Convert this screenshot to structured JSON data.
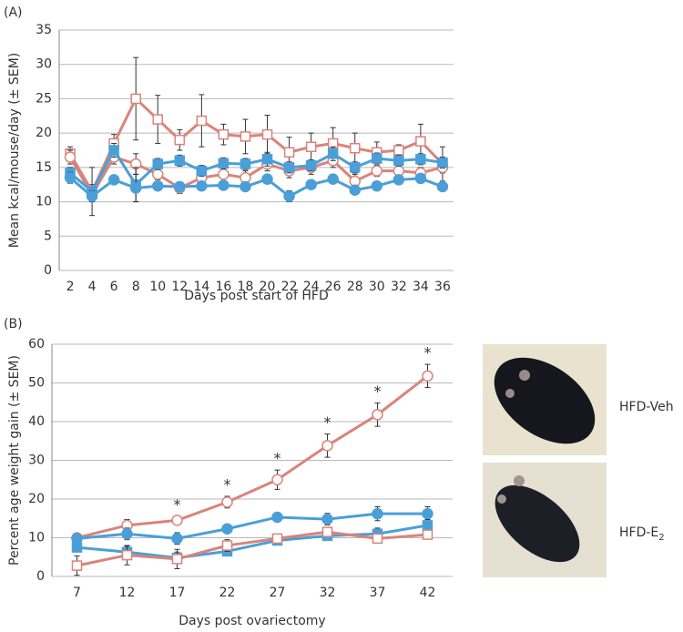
{
  "chart_data": [
    {
      "type": "line",
      "label": "(A)",
      "x_label": "Days post start of HFD",
      "y_label": "Mean kcal/mouse/day (± SEM)",
      "categories": [
        "2",
        "4",
        "6",
        "8",
        "10",
        "12",
        "14",
        "16",
        "18",
        "20",
        "22",
        "24",
        "26",
        "28",
        "30",
        "32",
        "34",
        "36"
      ],
      "ylim": [
        0,
        35
      ],
      "yticks": [
        0,
        5,
        10,
        15,
        20,
        25,
        30,
        35
      ],
      "grid": true,
      "series": [
        {
          "color": "#d9847a",
          "marker": "square",
          "filled": false,
          "values": [
            17,
            11.5,
            18.5,
            25,
            22,
            19,
            21.8,
            19.8,
            19.5,
            19.8,
            17.2,
            18,
            18.5,
            17.8,
            17.2,
            17.5,
            18.8,
            15.5
          ],
          "errors": [
            1,
            3.5,
            1.3,
            6,
            3.5,
            1.5,
            3.8,
            1.5,
            2.5,
            2.8,
            2.2,
            2,
            2.3,
            2.2,
            1.5,
            0.8,
            2.5,
            2.5
          ]
        },
        {
          "color": "#d9847a",
          "marker": "circle",
          "filled": false,
          "values": [
            16.5,
            11,
            16.5,
            15.5,
            14,
            12,
            13.5,
            14,
            13.5,
            15.5,
            14.5,
            15,
            16,
            13,
            14.5,
            14.5,
            14.2,
            15
          ],
          "errors": [
            1,
            1,
            1,
            1.5,
            0.8,
            0.8,
            0.8,
            1,
            1,
            1,
            1,
            1,
            1,
            1,
            0.8,
            0.8,
            0.8,
            0.8
          ]
        },
        {
          "color": "#4a9fd8",
          "marker": "square",
          "filled": true,
          "values": [
            14.2,
            11.5,
            17.5,
            12.5,
            15.5,
            16,
            14.5,
            15.6,
            15.5,
            16.2,
            15,
            15.3,
            17,
            15,
            16.3,
            16,
            16.2,
            15.7
          ],
          "errors": [
            0.8,
            1,
            1,
            2.5,
            0.8,
            0.8,
            0.8,
            0.8,
            0.8,
            1,
            0.8,
            0.8,
            1,
            0.8,
            0.8,
            0.8,
            0.8,
            0.8
          ]
        },
        {
          "color": "#4a9fd8",
          "marker": "circle",
          "filled": true,
          "values": [
            13.5,
            10.8,
            13.2,
            12,
            12.3,
            12.2,
            12.3,
            12.4,
            12.2,
            13.3,
            10.8,
            12.5,
            13.3,
            11.7,
            12.3,
            13.2,
            13.4,
            12.2
          ],
          "errors": [
            0.8,
            0.8,
            0.5,
            2,
            0.5,
            0.5,
            0.5,
            0.5,
            0.5,
            0.5,
            0.8,
            0.5,
            0.5,
            0.5,
            0.5,
            0.5,
            0.5,
            0.5
          ]
        }
      ]
    },
    {
      "type": "line",
      "label": "(B)",
      "x_label": "Days post ovariectomy",
      "y_label": "Percent age weight gain (± SEM)",
      "categories": [
        "7",
        "12",
        "17",
        "22",
        "27",
        "32",
        "37",
        "42"
      ],
      "ylim": [
        0,
        60
      ],
      "yticks": [
        0,
        10,
        20,
        30,
        40,
        50,
        60
      ],
      "grid": true,
      "significance": [
        null,
        null,
        "*",
        "*",
        "*",
        "*",
        "*",
        "*"
      ],
      "series": [
        {
          "color": "#d9847a",
          "marker": "circle",
          "filled": false,
          "values": [
            10,
            13.2,
            14.5,
            19.2,
            25,
            33.8,
            41.8,
            51.8
          ],
          "errors": [
            1,
            1.5,
            1,
            1.5,
            2.5,
            3,
            3,
            3
          ]
        },
        {
          "color": "#4a9fd8",
          "marker": "circle",
          "filled": true,
          "values": [
            9.8,
            11,
            9.8,
            12.3,
            15.3,
            14.8,
            16.2,
            16.2
          ],
          "errors": [
            1,
            1.5,
            1.5,
            1,
            1,
            1.5,
            1.8,
            1.8
          ]
        },
        {
          "color": "#4a9fd8",
          "marker": "square",
          "filled": true,
          "values": [
            7.5,
            6.3,
            4.8,
            6.5,
            9.3,
            10.5,
            11,
            13.2
          ],
          "errors": [
            1,
            1.5,
            1.5,
            1,
            1,
            1,
            1.5,
            1.5
          ]
        },
        {
          "color": "#d9847a",
          "marker": "square",
          "filled": false,
          "values": [
            2.8,
            5.5,
            4.5,
            8,
            9.8,
            11.5,
            9.8,
            10.8
          ],
          "errors": [
            2.5,
            2.5,
            2.5,
            1.5,
            1,
            1,
            1,
            1
          ]
        }
      ]
    }
  ],
  "photos": [
    {
      "label": "HFD-Veh"
    },
    {
      "label": "HFD-E",
      "subscript": "2"
    }
  ]
}
